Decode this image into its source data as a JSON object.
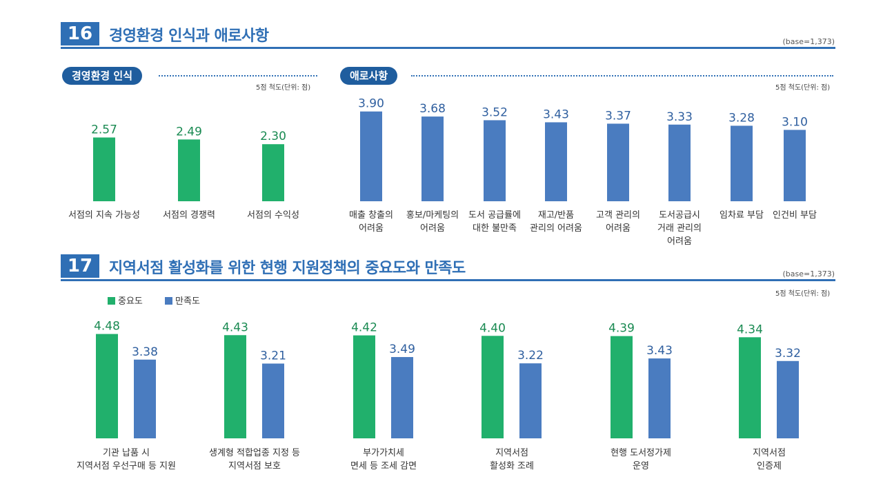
{
  "section16": {
    "number": "16",
    "title": "경영환경 인식과 애로사항",
    "base": "(base=1,373)",
    "left_pill": "경영환경 인식",
    "right_pill": "애로사항",
    "left_unit": "5점 척도(단위: 점)",
    "right_unit": "5점 척도(단위: 점)"
  },
  "section17": {
    "number": "17",
    "title": "지역서점 활성화를 위한 현행 지원정책의 중요도와 만족도",
    "base": "(base=1,373)",
    "unit": "5점 척도(단위: 점)"
  },
  "colors": {
    "green": "#21b06c",
    "blue": "#4a7cc0",
    "accent": "#2f6fb5",
    "pill": "#1f5d9e"
  },
  "chart_data": [
    {
      "type": "bar",
      "title": "경영환경 인식",
      "categories": [
        "서점의 지속 가능성",
        "서점의 경쟁력",
        "서점의 수익성"
      ],
      "values": [
        2.57,
        2.49,
        2.3
      ],
      "value_labels": [
        "2.57",
        "2.49",
        "2.30"
      ],
      "color": "#21b06c"
    },
    {
      "type": "bar",
      "title": "애로사항",
      "categories": [
        "매출 창출의\n어려움",
        "홍보/마케팅의\n어려움",
        "도서 공급률에\n대한 불만족",
        "재고/반품\n관리의 어려움",
        "고객 관리의\n어려움",
        "도서공급시\n거래 관리의\n어려움",
        "임차료 부담",
        "인건비 부담"
      ],
      "values": [
        3.9,
        3.68,
        3.52,
        3.43,
        3.37,
        3.33,
        3.28,
        3.1
      ],
      "value_labels": [
        "3.90",
        "3.68",
        "3.52",
        "3.43",
        "3.37",
        "3.33",
        "3.28",
        "3.10"
      ],
      "color": "#4a7cc0"
    },
    {
      "type": "bar",
      "title": "지역서점 활성화를 위한 현행 지원정책의 중요도와 만족도",
      "categories": [
        "기관 납품 시\n지역서점 우선구매 등 지원",
        "생계형 적합업종 지정 등\n지역서점 보호",
        "부가가치세\n면세 등 조세 감면",
        "지역서점\n활성화 조례",
        "현행 도서정가제\n운영",
        "지역서점\n인증제"
      ],
      "series": [
        {
          "name": "중요도",
          "values": [
            4.48,
            4.43,
            4.42,
            4.4,
            4.39,
            4.34
          ],
          "value_labels": [
            "4.48",
            "4.43",
            "4.42",
            "4.40",
            "4.39",
            "4.34"
          ],
          "color": "#21b06c"
        },
        {
          "name": "만족도",
          "values": [
            3.38,
            3.21,
            3.49,
            3.22,
            3.43,
            3.32
          ],
          "value_labels": [
            "3.38",
            "3.21",
            "3.49",
            "3.22",
            "3.43",
            "3.32"
          ],
          "color": "#4a7cc0"
        }
      ],
      "legend": "top-left"
    }
  ]
}
